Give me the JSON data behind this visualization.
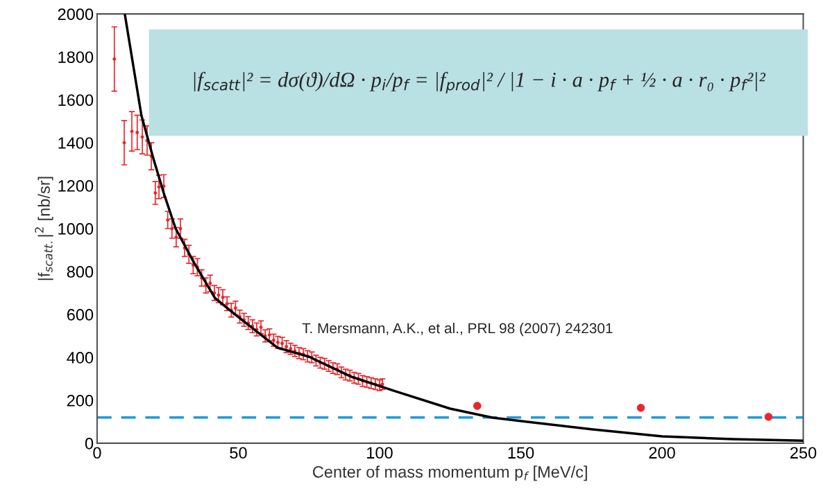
{
  "chart_data": {
    "type": "scatter",
    "xlabel": "Center of mass momentum p$_{f}$ [MeV/c]",
    "ylabel": "|f$_{scatt.}$|$^{2}$ [nb/sr]",
    "xlim": [
      0,
      250
    ],
    "xticks": [
      0,
      50,
      100,
      150,
      200,
      250
    ],
    "ylim": [
      0,
      2000
    ],
    "yticks": [
      0,
      200,
      400,
      600,
      800,
      1000,
      1200,
      1400,
      1600,
      1800,
      2000
    ],
    "grid": false,
    "legend": false,
    "annotations": [
      "|f$_{scatt}$|² = dσ(ϑ)/dΩ · p$_{i}$/p$_{f}$ = |f$_{prod}$|² / |1 − i · a · p$_{f}$ + ½ · a · r₀ · p$_{f}$²|²",
      "T. Mersmann, A.K., et al., PRL 98 (2007) 242301"
    ],
    "ref_lines": [
      {
        "axis": "y",
        "value": 120,
        "color": "#1e9ad6",
        "line_style": "dashed"
      }
    ],
    "series": [
      {
        "marker": "none",
        "color": "#e8262b",
        "x": [
          6.1,
          9.6,
          12.3,
          14.2,
          16.0,
          17.7,
          19.2,
          20.6,
          21.9,
          23.6,
          25.0,
          26.5,
          28.0,
          29.5,
          31.0,
          32.5,
          34.0,
          35.5,
          37.0,
          38.5,
          40.0,
          41.5,
          43.0,
          44.5,
          46.0,
          47.5,
          49.0,
          50.5,
          52.0,
          53.5,
          55.0,
          56.5,
          58.0,
          59.5,
          61.0,
          62.5,
          64.0,
          65.5,
          67.0,
          68.5,
          70.0,
          71.5,
          73.0,
          74.5,
          76.0,
          77.5,
          79.0,
          80.5,
          82.0,
          83.5,
          85.0,
          86.5,
          88.0,
          89.5,
          91.0,
          92.5,
          94.0,
          95.5,
          97.0,
          98.5,
          100.0,
          101.0
        ],
        "values": [
          1790,
          1400,
          1453,
          1448,
          1427,
          1410,
          1337,
          1166,
          1194,
          1198,
          1040,
          1000,
          960,
          1000,
          910,
          880,
          830,
          820,
          770,
          735,
          745,
          700,
          690,
          680,
          650,
          620,
          630,
          590,
          575,
          560,
          545,
          530,
          540,
          500,
          505,
          480,
          470,
          465,
          450,
          440,
          430,
          420,
          415,
          405,
          400,
          385,
          375,
          370,
          360,
          350,
          345,
          330,
          320,
          315,
          305,
          300,
          290,
          285,
          280,
          275,
          270,
          275
        ],
        "errors": [
          150,
          103,
          92,
          80,
          79,
          68,
          63,
          53,
          55,
          53,
          40,
          45,
          45,
          45,
          40,
          42,
          40,
          40,
          38,
          35,
          38,
          35,
          35,
          35,
          32,
          32,
          32,
          30,
          30,
          30,
          30,
          30,
          30,
          28,
          28,
          28,
          28,
          28,
          28,
          26,
          26,
          26,
          26,
          26,
          25,
          25,
          25,
          25,
          25,
          25,
          25,
          25,
          25,
          25,
          25,
          25,
          25,
          25,
          25,
          25,
          25,
          25
        ]
      },
      {
        "marker": "circle",
        "color": "#e8262b",
        "x": [
          134.6,
          192.5,
          237.7
        ],
        "values": [
          174,
          165,
          123
        ]
      },
      {
        "type": "line",
        "marker": "none",
        "color": "#000000",
        "x": [
          9.8,
          15.7,
          20,
          23.7,
          27.8,
          34.4,
          41.7,
          46.7,
          51.6,
          63.9,
          75,
          90,
          105.6,
          125,
          140,
          175,
          200,
          225,
          250
        ],
        "values": [
          2000,
          1526,
          1323,
          1161,
          1000,
          839,
          677,
          623,
          571,
          445,
          403,
          310,
          242,
          161,
          119,
          65,
          32,
          19,
          12
        ]
      }
    ]
  }
}
